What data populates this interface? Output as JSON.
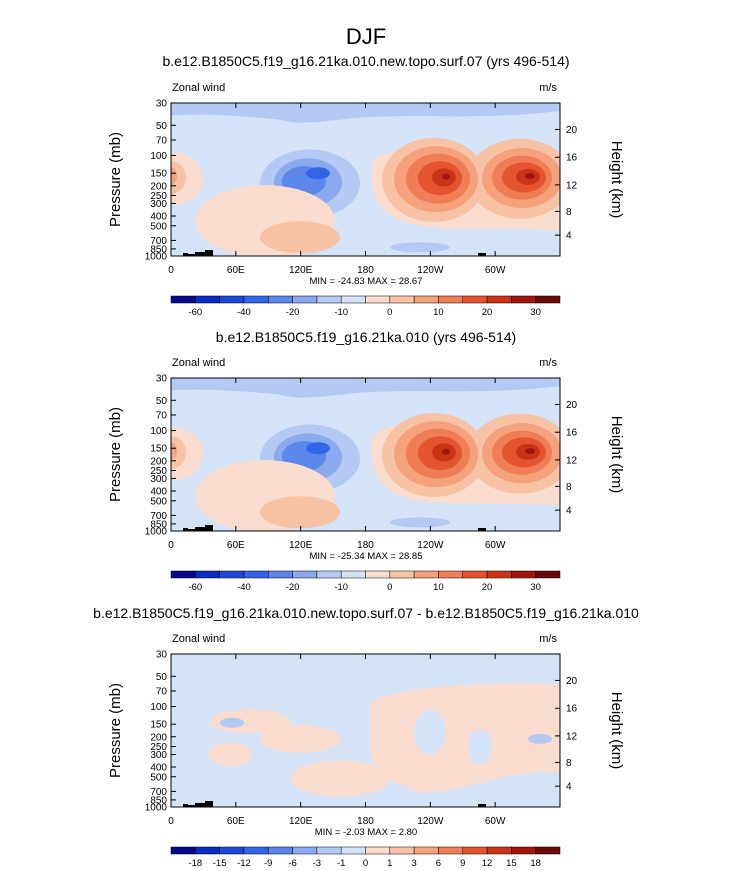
{
  "figure": {
    "title": "DJF"
  },
  "chart_data": [
    {
      "type": "heatmap",
      "title": "b.e12.B1850C5.f19_g16.21ka.010.new.topo.surf.07 (yrs 496-514)",
      "left_label": "Zonal wind",
      "right_label": "m/s",
      "ylabel": "Pressure (mb)",
      "ylabel_right": "Height (km)",
      "x_ticks": [
        "0",
        "60E",
        "120E",
        "180",
        "120W",
        "60W"
      ],
      "y_ticks": [
        "30",
        "50",
        "70",
        "100",
        "150",
        "200",
        "250",
        "300",
        "400",
        "500",
        "700",
        "850",
        "1000"
      ],
      "height_ticks": [
        "20",
        "16",
        "12",
        "8",
        "4"
      ],
      "stats": "MIN = -24.83  MAX = 28.67",
      "colorbar": {
        "labels": [
          "-60",
          "-40",
          "-20",
          "-10",
          "0",
          "10",
          "20",
          "30"
        ],
        "colors": [
          "#08088a",
          "#0a2bbf",
          "#1e48d8",
          "#3366e6",
          "#5b86ea",
          "#8aa9ef",
          "#b4c9f4",
          "#d4e3f8",
          "#f9dccd",
          "#f8c2a4",
          "#f5a27c",
          "#ef7d55",
          "#e4552f",
          "#c93316",
          "#a1170d",
          "#6b0808"
        ]
      }
    },
    {
      "type": "heatmap",
      "title": "b.e12.B1850C5.f19_g16.21ka.010 (yrs 496-514)",
      "left_label": "Zonal wind",
      "right_label": "m/s",
      "ylabel": "Pressure (mb)",
      "ylabel_right": "Height (km)",
      "x_ticks": [
        "0",
        "60E",
        "120E",
        "180",
        "120W",
        "60W"
      ],
      "y_ticks": [
        "30",
        "50",
        "70",
        "100",
        "150",
        "200",
        "250",
        "300",
        "400",
        "500",
        "700",
        "850",
        "1000"
      ],
      "height_ticks": [
        "20",
        "16",
        "12",
        "8",
        "4"
      ],
      "stats": "MIN = -25.34  MAX = 28.85",
      "colorbar": {
        "labels": [
          "-60",
          "-40",
          "-20",
          "-10",
          "0",
          "10",
          "20",
          "30"
        ],
        "colors": [
          "#08088a",
          "#0a2bbf",
          "#1e48d8",
          "#3366e6",
          "#5b86ea",
          "#8aa9ef",
          "#b4c9f4",
          "#d4e3f8",
          "#f9dccd",
          "#f8c2a4",
          "#f5a27c",
          "#ef7d55",
          "#e4552f",
          "#c93316",
          "#a1170d",
          "#6b0808"
        ]
      }
    },
    {
      "type": "heatmap",
      "title": "b.e12.B1850C5.f19_g16.21ka.010.new.topo.surf.07 - b.e12.B1850C5.f19_g16.21ka.010",
      "left_label": "Zonal wind",
      "right_label": "m/s",
      "ylabel": "Pressure (mb)",
      "ylabel_right": "Height (km)",
      "x_ticks": [
        "0",
        "60E",
        "120E",
        "180",
        "120W",
        "60W"
      ],
      "y_ticks": [
        "30",
        "50",
        "70",
        "100",
        "150",
        "200",
        "250",
        "300",
        "400",
        "500",
        "700",
        "850",
        "1000"
      ],
      "height_ticks": [
        "20",
        "16",
        "12",
        "8",
        "4"
      ],
      "stats": "MIN = -2.03  MAX =  2.80",
      "colorbar": {
        "labels": [
          "-18",
          "-15",
          "-12",
          "-9",
          "-6",
          "-3",
          "-1",
          "0",
          "1",
          "3",
          "6",
          "9",
          "12",
          "15",
          "18"
        ],
        "colors": [
          "#08088a",
          "#0a2bbf",
          "#1e48d8",
          "#3366e6",
          "#5b86ea",
          "#8aa9ef",
          "#b4c9f4",
          "#d4e3f8",
          "#f9dccd",
          "#f8c2a4",
          "#f5a27c",
          "#ef7d55",
          "#e4552f",
          "#c93316",
          "#a1170d",
          "#6b0808"
        ]
      }
    }
  ]
}
